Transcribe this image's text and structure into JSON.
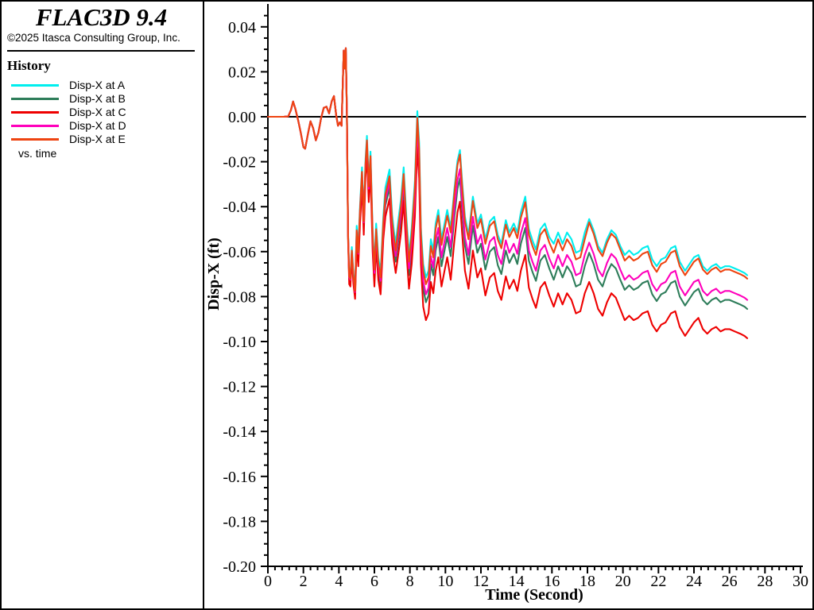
{
  "header": {
    "title": "FLAC3D 9.4",
    "copyright": "©2025 Itasca Consulting Group, Inc."
  },
  "legend": {
    "title": "History",
    "footer": "vs. time",
    "items": [
      {
        "label": "Disp-X at A",
        "color": "#00EEEE"
      },
      {
        "label": "Disp-X at B",
        "color": "#2E7D5A"
      },
      {
        "label": "Disp-X at C",
        "color": "#EE0000"
      },
      {
        "label": "Disp-X at D",
        "color": "#FF00BB"
      },
      {
        "label": "Disp-X at E",
        "color": "#EE4411"
      }
    ]
  },
  "chart_data": {
    "type": "line",
    "title": "History vs. time",
    "xlabel": "Time (Second)",
    "ylabel": "Disp-X (ft)",
    "xlim": [
      0,
      30
    ],
    "ylim": [
      -0.2,
      0.05
    ],
    "x_major_step": 2,
    "x_minor_step": 0.4,
    "y_major_step": 0.02,
    "y_minor_step": 0.005,
    "y_label_top": 0.04,
    "grid": false,
    "zero_line": true,
    "legend_position": "left-panel",
    "axis_color": "#000000",
    "x": [
      0,
      0.9,
      1.15,
      1.3,
      1.42,
      1.55,
      1.7,
      1.85,
      2.0,
      2.1,
      2.25,
      2.4,
      2.55,
      2.7,
      2.85,
      3.0,
      3.15,
      3.3,
      3.45,
      3.6,
      3.72,
      3.85,
      3.95,
      4.05,
      4.15,
      4.27,
      4.33,
      4.39,
      4.45,
      4.52,
      4.58,
      4.65,
      4.73,
      4.82,
      4.91,
      5.0,
      5.09,
      5.19,
      5.3,
      5.4,
      5.5,
      5.58,
      5.68,
      5.78,
      5.9,
      6.0,
      6.1,
      6.22,
      6.35,
      6.5,
      6.62,
      6.75,
      6.85,
      7.0,
      7.1,
      7.2,
      7.35,
      7.5,
      7.65,
      7.8,
      7.95,
      8.1,
      8.28,
      8.42,
      8.52,
      8.62,
      8.75,
      8.9,
      9.05,
      9.18,
      9.32,
      9.45,
      9.6,
      9.78,
      9.95,
      10.1,
      10.3,
      10.5,
      10.68,
      10.82,
      10.95,
      11.1,
      11.3,
      11.55,
      11.8,
      12.0,
      12.25,
      12.5,
      12.75,
      12.95,
      13.15,
      13.4,
      13.6,
      13.85,
      14.05,
      14.25,
      14.5,
      14.7,
      14.9,
      15.1,
      15.35,
      15.6,
      15.85,
      16.1,
      16.35,
      16.6,
      16.85,
      17.1,
      17.35,
      17.6,
      17.85,
      18.1,
      18.35,
      18.6,
      18.85,
      19.1,
      19.35,
      19.6,
      19.85,
      20.1,
      20.35,
      20.6,
      20.85,
      21.1,
      21.4,
      21.65,
      21.9,
      22.15,
      22.4,
      22.7,
      22.95,
      23.2,
      23.5,
      23.75,
      24.0,
      24.25,
      24.5,
      24.75,
      25.0,
      25.25,
      25.5,
      25.75,
      26.0,
      26.3,
      26.6,
      26.85,
      27.0
    ],
    "series": [
      {
        "name": "Disp-X at A",
        "color": "#00EEEE",
        "y": [
          0,
          0,
          0.0002,
          0.003,
          0.0068,
          0.0035,
          -0.0015,
          -0.007,
          -0.0135,
          -0.0142,
          -0.008,
          -0.002,
          -0.005,
          -0.0105,
          -0.007,
          -0.0005,
          0.004,
          0.0045,
          0.0015,
          0.007,
          0.0092,
          0.0005,
          -0.004,
          -0.0025,
          -0.004,
          0.0295,
          0.0215,
          0.0305,
          0.001,
          -0.052,
          -0.0695,
          -0.0705,
          -0.058,
          -0.0695,
          -0.076,
          -0.0485,
          -0.0585,
          -0.0395,
          -0.0225,
          -0.0445,
          -0.019,
          -0.0085,
          -0.029,
          -0.0155,
          -0.051,
          -0.0655,
          -0.0475,
          -0.0625,
          -0.069,
          -0.0445,
          -0.0315,
          -0.027,
          -0.0235,
          -0.0435,
          -0.051,
          -0.0565,
          -0.046,
          -0.0365,
          -0.0225,
          -0.0445,
          -0.0615,
          -0.0495,
          -0.0285,
          0.0025,
          -0.0115,
          -0.0495,
          -0.0655,
          -0.0715,
          -0.0685,
          -0.0545,
          -0.0595,
          -0.0475,
          -0.0415,
          -0.0545,
          -0.0475,
          -0.0415,
          -0.0495,
          -0.0325,
          -0.0195,
          -0.0148,
          -0.0295,
          -0.0445,
          -0.0525,
          -0.0355,
          -0.0475,
          -0.0435,
          -0.0545,
          -0.0465,
          -0.0445,
          -0.0525,
          -0.0565,
          -0.046,
          -0.0515,
          -0.0475,
          -0.0515,
          -0.0425,
          -0.0355,
          -0.05,
          -0.055,
          -0.059,
          -0.05,
          -0.0475,
          -0.0535,
          -0.0565,
          -0.0515,
          -0.0565,
          -0.0515,
          -0.0545,
          -0.0605,
          -0.0595,
          -0.0515,
          -0.0455,
          -0.0505,
          -0.0575,
          -0.0605,
          -0.0545,
          -0.0505,
          -0.0525,
          -0.0575,
          -0.0615,
          -0.0595,
          -0.0615,
          -0.0605,
          -0.0585,
          -0.0575,
          -0.0635,
          -0.0665,
          -0.0635,
          -0.0625,
          -0.0585,
          -0.0575,
          -0.0645,
          -0.0685,
          -0.0655,
          -0.0625,
          -0.0615,
          -0.0665,
          -0.0685,
          -0.0665,
          -0.0655,
          -0.0675,
          -0.0665,
          -0.0665,
          -0.0675,
          -0.0685,
          -0.0695,
          -0.0705
        ]
      },
      {
        "name": "Disp-X at B",
        "color": "#2E7D5A",
        "y": [
          0,
          0,
          0.0002,
          0.003,
          0.0068,
          0.0035,
          -0.0015,
          -0.007,
          -0.0135,
          -0.0142,
          -0.008,
          -0.002,
          -0.005,
          -0.0105,
          -0.007,
          -0.0005,
          0.004,
          0.0045,
          0.0015,
          0.007,
          0.0092,
          0.0005,
          -0.004,
          -0.0025,
          -0.004,
          0.0295,
          0.0215,
          0.0305,
          0.001,
          -0.053,
          -0.072,
          -0.073,
          -0.0605,
          -0.072,
          -0.0785,
          -0.0525,
          -0.0625,
          -0.0435,
          -0.0265,
          -0.0485,
          -0.023,
          -0.0135,
          -0.034,
          -0.0205,
          -0.056,
          -0.0715,
          -0.0535,
          -0.0685,
          -0.075,
          -0.0505,
          -0.0395,
          -0.035,
          -0.0315,
          -0.0515,
          -0.059,
          -0.0645,
          -0.055,
          -0.0455,
          -0.0315,
          -0.0535,
          -0.0705,
          -0.0595,
          -0.0385,
          -0.0075,
          -0.0215,
          -0.0595,
          -0.0765,
          -0.0825,
          -0.0795,
          -0.0655,
          -0.0705,
          -0.0595,
          -0.0535,
          -0.0665,
          -0.0595,
          -0.0535,
          -0.062,
          -0.045,
          -0.032,
          -0.0273,
          -0.042,
          -0.0575,
          -0.0655,
          -0.0485,
          -0.0605,
          -0.0565,
          -0.068,
          -0.06,
          -0.058,
          -0.066,
          -0.07,
          -0.0595,
          -0.065,
          -0.061,
          -0.0655,
          -0.0565,
          -0.0495,
          -0.064,
          -0.069,
          -0.073,
          -0.064,
          -0.0615,
          -0.0675,
          -0.0725,
          -0.0665,
          -0.0715,
          -0.0665,
          -0.0695,
          -0.0755,
          -0.0745,
          -0.0665,
          -0.0605,
          -0.0655,
          -0.0725,
          -0.0755,
          -0.0695,
          -0.0655,
          -0.0675,
          -0.0725,
          -0.077,
          -0.075,
          -0.077,
          -0.076,
          -0.074,
          -0.073,
          -0.079,
          -0.082,
          -0.079,
          -0.078,
          -0.074,
          -0.073,
          -0.08,
          -0.084,
          -0.081,
          -0.078,
          -0.0765,
          -0.0815,
          -0.0835,
          -0.0815,
          -0.0805,
          -0.0825,
          -0.0815,
          -0.0815,
          -0.0825,
          -0.0835,
          -0.0845,
          -0.0855
        ]
      },
      {
        "name": "Disp-X at C",
        "color": "#EE0000",
        "y": [
          0,
          0,
          0.0002,
          0.003,
          0.0068,
          0.0035,
          -0.0015,
          -0.007,
          -0.0135,
          -0.0142,
          -0.008,
          -0.002,
          -0.005,
          -0.0105,
          -0.007,
          -0.0005,
          0.004,
          0.0045,
          0.0015,
          0.007,
          0.0092,
          0.0005,
          -0.004,
          -0.0025,
          -0.004,
          0.0295,
          0.0215,
          0.0305,
          0.001,
          -0.055,
          -0.0745,
          -0.0755,
          -0.063,
          -0.0745,
          -0.081,
          -0.0565,
          -0.0665,
          -0.0475,
          -0.0305,
          -0.0525,
          -0.027,
          -0.0175,
          -0.038,
          -0.0245,
          -0.06,
          -0.0755,
          -0.0575,
          -0.0725,
          -0.079,
          -0.0545,
          -0.0445,
          -0.04,
          -0.0365,
          -0.0565,
          -0.064,
          -0.0695,
          -0.061,
          -0.0515,
          -0.0375,
          -0.0595,
          -0.0765,
          -0.0655,
          -0.0445,
          -0.0135,
          -0.0275,
          -0.0655,
          -0.0845,
          -0.0905,
          -0.0875,
          -0.0735,
          -0.0785,
          -0.0685,
          -0.0625,
          -0.0755,
          -0.0685,
          -0.0625,
          -0.0725,
          -0.0555,
          -0.0425,
          -0.0378,
          -0.0525,
          -0.0685,
          -0.0765,
          -0.0595,
          -0.0715,
          -0.0675,
          -0.0795,
          -0.0715,
          -0.0695,
          -0.0775,
          -0.0815,
          -0.071,
          -0.0765,
          -0.0725,
          -0.0775,
          -0.0685,
          -0.0615,
          -0.076,
          -0.081,
          -0.085,
          -0.076,
          -0.0735,
          -0.0795,
          -0.0845,
          -0.0785,
          -0.0835,
          -0.0785,
          -0.0815,
          -0.0875,
          -0.0865,
          -0.0785,
          -0.0735,
          -0.0785,
          -0.0855,
          -0.0885,
          -0.0825,
          -0.0785,
          -0.0805,
          -0.0855,
          -0.0905,
          -0.0885,
          -0.0905,
          -0.0895,
          -0.0875,
          -0.0865,
          -0.0925,
          -0.0955,
          -0.0925,
          -0.0915,
          -0.0875,
          -0.0865,
          -0.0935,
          -0.0975,
          -0.0945,
          -0.0915,
          -0.0895,
          -0.0945,
          -0.0965,
          -0.0945,
          -0.0935,
          -0.0955,
          -0.0945,
          -0.0945,
          -0.0955,
          -0.0965,
          -0.0975,
          -0.0985
        ]
      },
      {
        "name": "Disp-X at D",
        "color": "#FF00BB",
        "y": [
          0,
          0,
          0.0002,
          0.003,
          0.0068,
          0.0035,
          -0.0015,
          -0.007,
          -0.0135,
          -0.0142,
          -0.008,
          -0.002,
          -0.005,
          -0.0105,
          -0.007,
          -0.0005,
          0.004,
          0.0045,
          0.0015,
          0.007,
          0.0092,
          0.0005,
          -0.004,
          -0.0025,
          -0.004,
          0.0295,
          0.0215,
          0.0305,
          0.001,
          -0.053,
          -0.0715,
          -0.0725,
          -0.06,
          -0.0715,
          -0.078,
          -0.051,
          -0.061,
          -0.042,
          -0.025,
          -0.047,
          -0.0215,
          -0.0115,
          -0.032,
          -0.0185,
          -0.054,
          -0.0695,
          -0.0515,
          -0.0665,
          -0.073,
          -0.0485,
          -0.037,
          -0.0325,
          -0.029,
          -0.049,
          -0.0565,
          -0.062,
          -0.052,
          -0.0425,
          -0.0285,
          -0.0505,
          -0.0675,
          -0.0565,
          -0.0355,
          -0.0045,
          -0.0185,
          -0.0565,
          -0.073,
          -0.079,
          -0.076,
          -0.062,
          -0.067,
          -0.0555,
          -0.0495,
          -0.0625,
          -0.0555,
          -0.0495,
          -0.058,
          -0.041,
          -0.028,
          -0.0233,
          -0.038,
          -0.0535,
          -0.0615,
          -0.0445,
          -0.0565,
          -0.0525,
          -0.0635,
          -0.0555,
          -0.0535,
          -0.0615,
          -0.0655,
          -0.055,
          -0.0605,
          -0.0565,
          -0.061,
          -0.052,
          -0.045,
          -0.0595,
          -0.0645,
          -0.0685,
          -0.0595,
          -0.057,
          -0.063,
          -0.0675,
          -0.0615,
          -0.0665,
          -0.0615,
          -0.0645,
          -0.0705,
          -0.0695,
          -0.0615,
          -0.056,
          -0.061,
          -0.068,
          -0.071,
          -0.065,
          -0.061,
          -0.063,
          -0.068,
          -0.0725,
          -0.0705,
          -0.0725,
          -0.0715,
          -0.0695,
          -0.0685,
          -0.0745,
          -0.0775,
          -0.0745,
          -0.0735,
          -0.0695,
          -0.0685,
          -0.0755,
          -0.0795,
          -0.0765,
          -0.0735,
          -0.0725,
          -0.0775,
          -0.0795,
          -0.0775,
          -0.0765,
          -0.0785,
          -0.0775,
          -0.0775,
          -0.0785,
          -0.0795,
          -0.0805,
          -0.0815
        ]
      },
      {
        "name": "Disp-X at E",
        "color": "#EE4411",
        "y": [
          0,
          0,
          0.0002,
          0.003,
          0.0068,
          0.0035,
          -0.0015,
          -0.007,
          -0.0135,
          -0.0142,
          -0.008,
          -0.002,
          -0.005,
          -0.0105,
          -0.007,
          -0.0005,
          0.004,
          0.0045,
          0.0015,
          0.007,
          0.0092,
          0.0005,
          -0.004,
          -0.0025,
          -0.004,
          0.0295,
          0.0215,
          0.0305,
          0.001,
          -0.053,
          -0.071,
          -0.072,
          -0.0595,
          -0.071,
          -0.0775,
          -0.0505,
          -0.0605,
          -0.0415,
          -0.0245,
          -0.0465,
          -0.021,
          -0.0105,
          -0.031,
          -0.0175,
          -0.053,
          -0.068,
          -0.05,
          -0.065,
          -0.0715,
          -0.047,
          -0.0345,
          -0.03,
          -0.0265,
          -0.0465,
          -0.054,
          -0.0595,
          -0.049,
          -0.0395,
          -0.0255,
          -0.0475,
          -0.0645,
          -0.0525,
          -0.0315,
          -0.0005,
          -0.0145,
          -0.0525,
          -0.0685,
          -0.0745,
          -0.0715,
          -0.0575,
          -0.0625,
          -0.05,
          -0.044,
          -0.057,
          -0.05,
          -0.044,
          -0.0515,
          -0.0345,
          -0.0215,
          -0.0168,
          -0.0315,
          -0.0465,
          -0.0545,
          -0.0375,
          -0.0495,
          -0.0455,
          -0.0565,
          -0.0485,
          -0.0465,
          -0.0545,
          -0.0585,
          -0.048,
          -0.0535,
          -0.0495,
          -0.054,
          -0.045,
          -0.038,
          -0.0525,
          -0.0575,
          -0.0615,
          -0.0525,
          -0.05,
          -0.056,
          -0.0605,
          -0.0545,
          -0.0595,
          -0.0545,
          -0.0575,
          -0.0635,
          -0.0625,
          -0.0545,
          -0.047,
          -0.052,
          -0.059,
          -0.062,
          -0.056,
          -0.052,
          -0.054,
          -0.059,
          -0.064,
          -0.062,
          -0.064,
          -0.063,
          -0.061,
          -0.06,
          -0.066,
          -0.069,
          -0.0655,
          -0.0645,
          -0.0605,
          -0.0595,
          -0.0665,
          -0.0705,
          -0.0675,
          -0.0645,
          -0.063,
          -0.068,
          -0.07,
          -0.068,
          -0.067,
          -0.069,
          -0.068,
          -0.068,
          -0.069,
          -0.07,
          -0.071,
          -0.072
        ]
      }
    ]
  }
}
